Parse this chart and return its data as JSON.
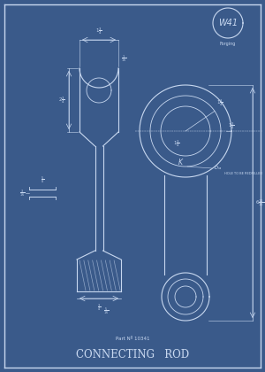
{
  "bg_color": "#3a5a8a",
  "line_color": "#c8d8f0",
  "title": "CONNECTING   ROD",
  "part_no": "Part Nº 10341",
  "stamp_text": "W41",
  "stamp_sub": "Forging",
  "figsize": [
    3.0,
    4.2
  ],
  "dpi": 100
}
